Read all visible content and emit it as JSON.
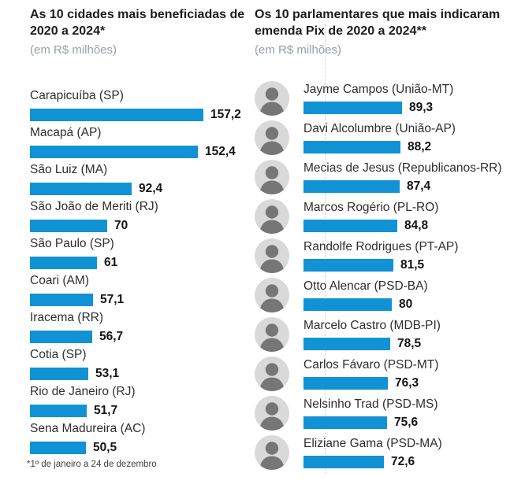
{
  "page": {
    "background": "#ffffff"
  },
  "colors": {
    "bar_blue": "#1092d4",
    "title_dark": "#1c1c1e",
    "subtitle_gray": "#97a0a6",
    "divider_gray": "#ced3d7"
  },
  "chart_data": [
    {
      "type": "bar",
      "orientation": "horizontal",
      "title": "As 10 cidades mais beneficiadas de 2020 a 2024*",
      "subtitle": "(em R$ milhões)",
      "unit": "R$ milhões",
      "footnote": "*1º de janeiro a 24 de dezembro",
      "categories": [
        "Carapicuíba (SP)",
        "Macapá (AP)",
        "São Luiz (MA)",
        "São João de Meriti (RJ)",
        "São Paulo (SP)",
        "Coari (AM)",
        "Iracema (RR)",
        "Cotia (SP)",
        "Rio de Janeiro (RJ)",
        "Sena Madureira (AC)"
      ],
      "values": [
        157.2,
        152.4,
        92.4,
        70,
        61,
        57.1,
        56.7,
        53.1,
        51.7,
        50.5
      ],
      "value_labels": [
        "157,2",
        "152,4",
        "92,4",
        "70",
        "61",
        "57,1",
        "56,7",
        "53,1",
        "51,7",
        "50,5"
      ],
      "bar_color": "#1092d4",
      "xlim": [
        0,
        160
      ],
      "grid": false,
      "legend": false
    },
    {
      "type": "bar",
      "orientation": "horizontal",
      "title": "Os 10 parlamentares que mais indicaram emenda Pix de 2020 a 2024**",
      "subtitle": "(em R$ milhões)",
      "unit": "R$ milhões",
      "avatar_icon": "person-photo-avatar",
      "categories": [
        "Jayme Campos (União-MT)",
        "Davi Alcolumbre (União-AP)",
        "Mecias de Jesus (Republicanos-RR)",
        "Marcos Rogério (PL-RO)",
        "Randolfe Rodrigues (PT-AP)",
        "Otto Alencar (PSD-BA)",
        "Marcelo Castro (MDB-PI)",
        "Carlos Fávaro (PSD-MT)",
        "Nelsinho Trad (PSD-MS)",
        "Eliziane Gama (PSD-MA)"
      ],
      "values": [
        89.3,
        88.2,
        87.4,
        84.8,
        81.5,
        80,
        78.5,
        76.3,
        75.6,
        72.6
      ],
      "value_labels": [
        "89,3",
        "88,2",
        "87,4",
        "84,8",
        "81,5",
        "80",
        "78,5",
        "76,3",
        "75,6",
        "72,6"
      ],
      "bar_color": "#1092d4",
      "xlim": [
        0,
        160
      ],
      "grid": false,
      "legend": false
    }
  ]
}
